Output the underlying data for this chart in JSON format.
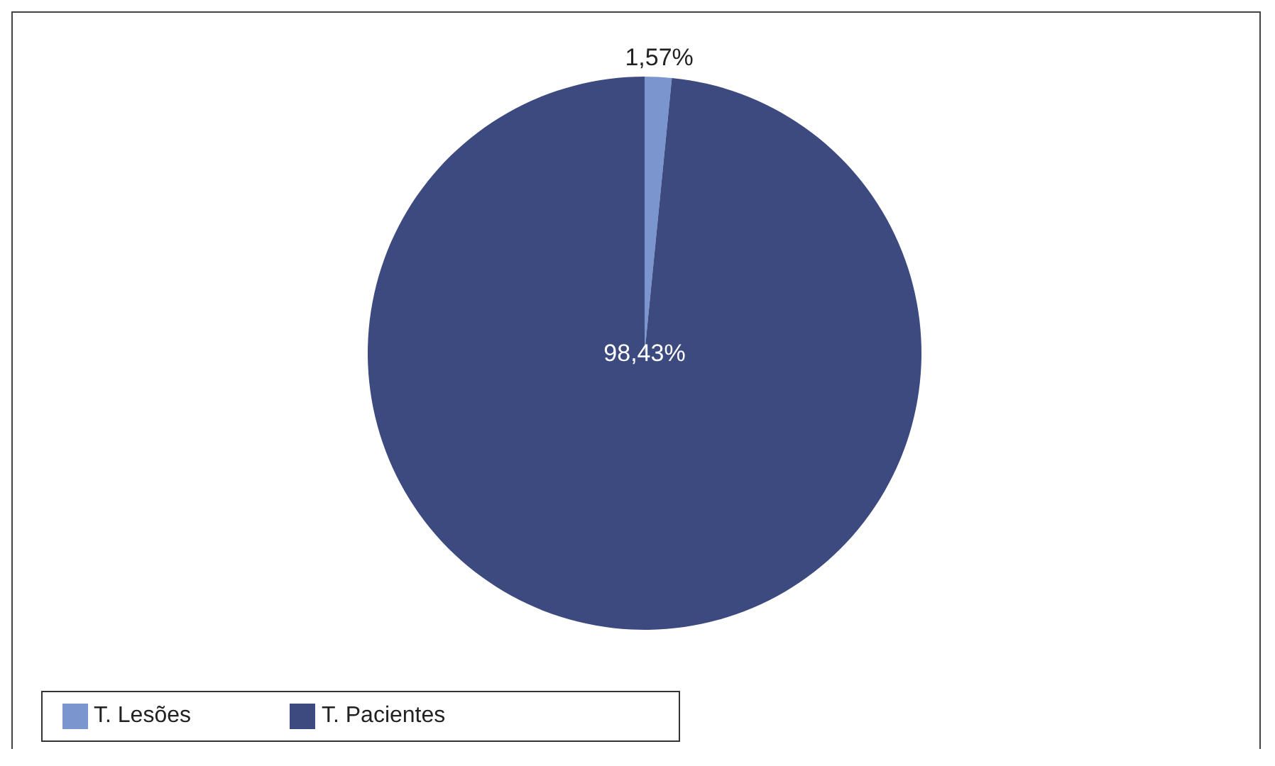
{
  "chart_data": {
    "type": "pie",
    "categories": [
      "T. Lesões",
      "T. Pacientes"
    ],
    "values": [
      1.57,
      98.43
    ],
    "colors": [
      "#7b96cf",
      "#3d4a80"
    ],
    "value_labels": [
      "1,57%",
      "98,43%"
    ],
    "legend": "bottom left"
  }
}
